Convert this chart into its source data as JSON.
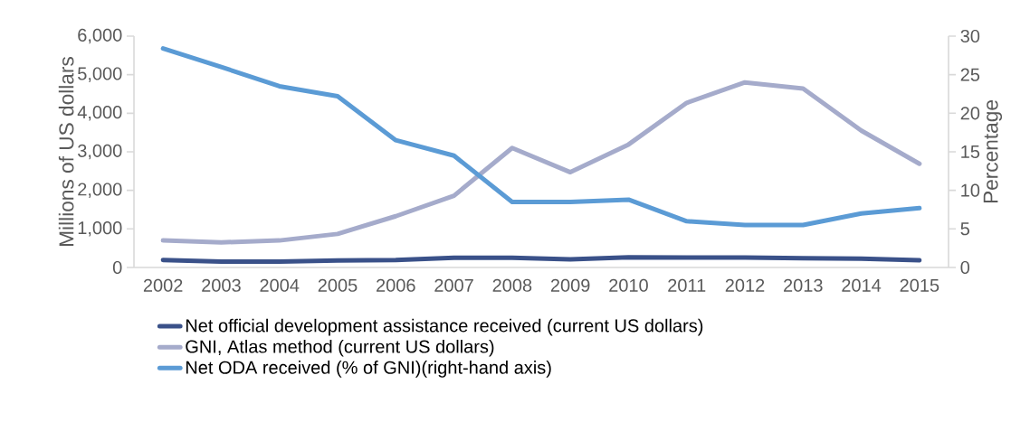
{
  "chart_data": {
    "type": "line",
    "categories": [
      "2002",
      "2003",
      "2004",
      "2005",
      "2006",
      "2007",
      "2008",
      "2009",
      "2010",
      "2011",
      "2012",
      "2013",
      "2014",
      "2015"
    ],
    "series": [
      {
        "name": "Net official development assistance received (current US dollars)",
        "color": "#3a5189",
        "values": [
          195,
          150,
          150,
          180,
          195,
          250,
          250,
          210,
          265,
          257,
          257,
          242,
          226,
          187
        ]
      },
      {
        "name": "GNI, Atlas method (current US dollars)",
        "color": "#a5abcb",
        "values": [
          700,
          650,
          700,
          870,
          1330,
          1860,
          3100,
          2470,
          3190,
          4270,
          4800,
          4640,
          3550,
          2690
        ]
      },
      {
        "name": "Net ODA received (% of GNI)(right-hand axis)",
        "color": "#5b9bd5",
        "axis": "y2",
        "values": [
          28.4,
          26.0,
          23.5,
          22.2,
          16.5,
          14.5,
          8.5,
          8.5,
          8.8,
          6.0,
          5.5,
          5.5,
          7.0,
          7.7
        ]
      }
    ],
    "ylabel": "Millions of US dollars",
    "y2label": "Percentage",
    "ylim": [
      0,
      6000
    ],
    "yticks": [
      0,
      {
        "value": 1000,
        "label": "1,000"
      },
      {
        "value": 2000,
        "label": "2,000"
      },
      {
        "value": 3000,
        "label": "3,000"
      },
      {
        "value": 4000,
        "label": "4,000"
      },
      {
        "value": 5000,
        "label": "5,000"
      },
      {
        "value": 6000,
        "label": "6,000"
      }
    ],
    "y2lim": [
      0,
      30
    ],
    "y2ticks": [
      0,
      5,
      10,
      15,
      20,
      25,
      30
    ],
    "legend": "bottom"
  }
}
